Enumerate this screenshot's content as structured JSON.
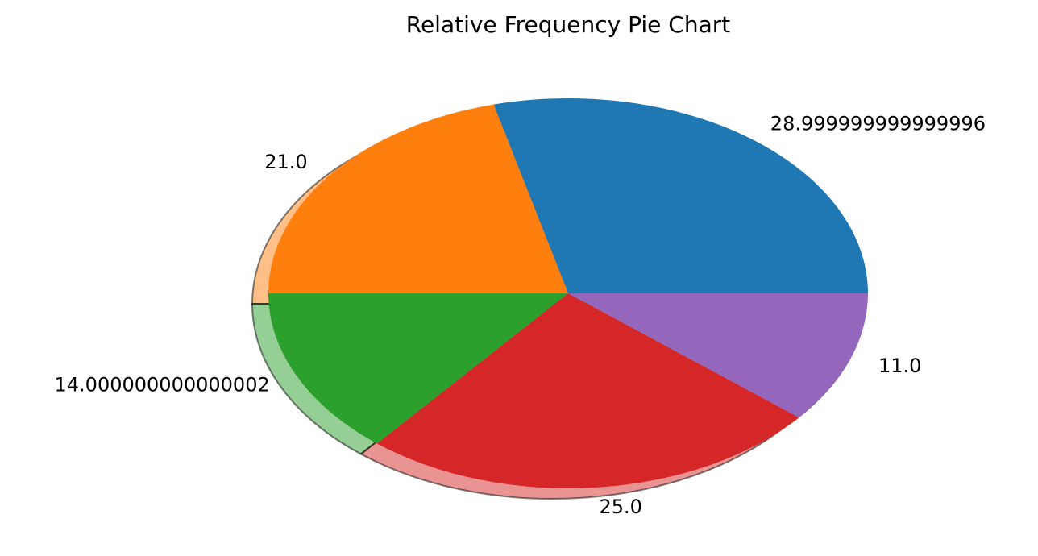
{
  "chart_data": {
    "type": "pie",
    "title": "Relative Frequency Pie Chart",
    "labels": [
      "28.999999999999996",
      "21.0",
      "14.000000000000002",
      "25.0",
      "11.0"
    ],
    "values": [
      28.999999999999996,
      21.0,
      14.000000000000002,
      25.0,
      11.0
    ],
    "colors": [
      "#1f77b4",
      "#ff7f0e",
      "#2ca02c",
      "#d62728",
      "#9467bd"
    ],
    "start_angle": 0,
    "direction": "counterclockwise",
    "shadow": true
  }
}
